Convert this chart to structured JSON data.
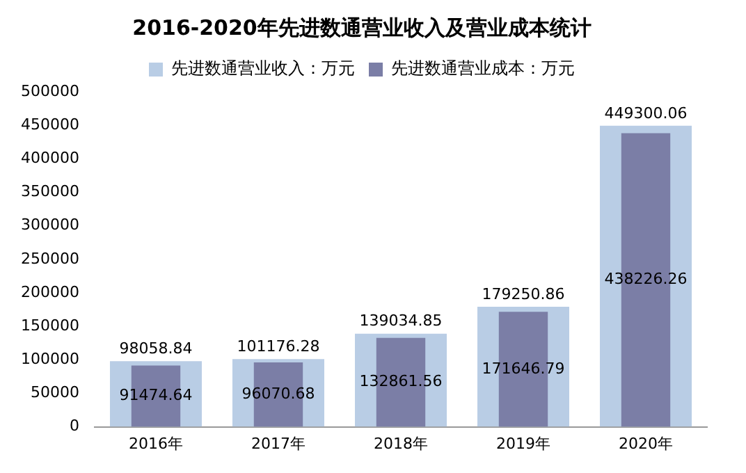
{
  "chart_data": {
    "type": "bar",
    "title": "2016-2020年先进数通营业收入及营业成本统计",
    "categories": [
      "2016年",
      "2017年",
      "2018年",
      "2019年",
      "2020年"
    ],
    "series": [
      {
        "name": "先进数通营业收入：万元",
        "color": "#b9cde5",
        "values": [
          98058.84,
          101176.28,
          139034.85,
          179250.86,
          449300.06
        ]
      },
      {
        "name": "先进数通营业成本：万元",
        "color": "#7b7ea6",
        "values": [
          91474.64,
          96070.68,
          132861.56,
          171646.79,
          438226.26
        ]
      }
    ],
    "ylim": [
      0,
      500000
    ],
    "yticks": [
      0,
      50000,
      100000,
      150000,
      200000,
      250000,
      300000,
      350000,
      400000,
      450000,
      500000
    ],
    "grid": false,
    "legend": "top",
    "data_labels": true
  }
}
